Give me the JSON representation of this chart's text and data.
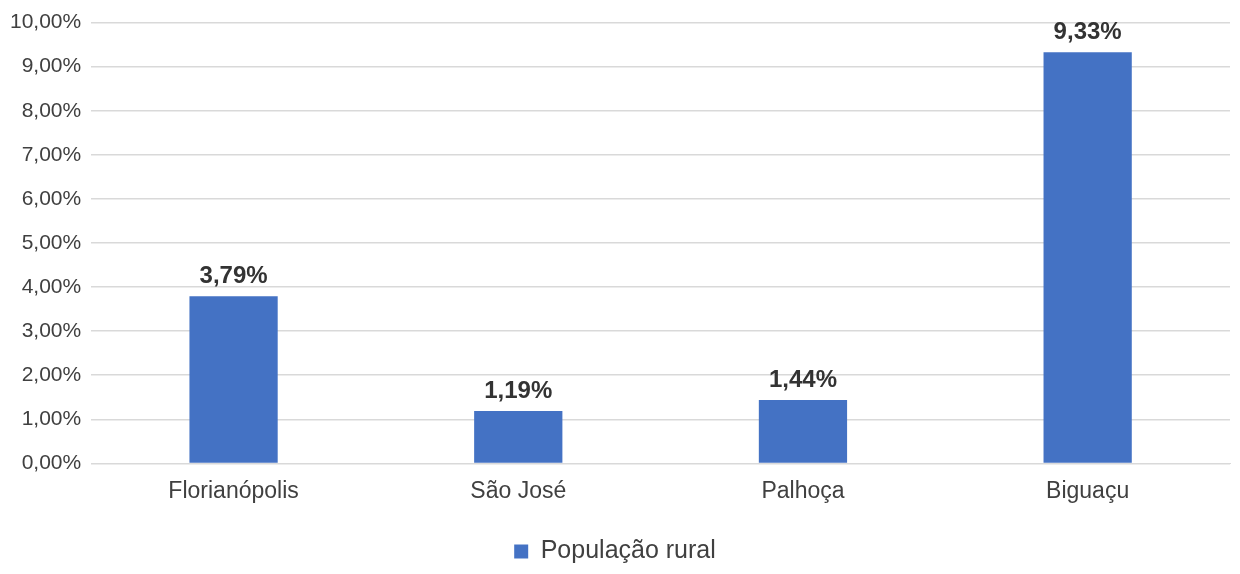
{
  "chart_data": {
    "type": "bar",
    "categories": [
      "Florianópolis",
      "São José",
      "Palhoça",
      "Biguaçu"
    ],
    "series": [
      {
        "name": "População rural",
        "color": "#4472c4",
        "values": [
          3.79,
          1.19,
          1.44,
          9.33
        ],
        "value_labels": [
          "3,79%",
          "1,19%",
          "1,44%",
          "9,33%"
        ]
      }
    ],
    "ylim": [
      0,
      10
    ],
    "yticks": [
      {
        "value": 0,
        "label": "0,00%"
      },
      {
        "value": 1,
        "label": "1,00%"
      },
      {
        "value": 2,
        "label": "2,00%"
      },
      {
        "value": 3,
        "label": "3,00%"
      },
      {
        "value": 4,
        "label": "4,00%"
      },
      {
        "value": 5,
        "label": "5,00%"
      },
      {
        "value": 6,
        "label": "6,00%"
      },
      {
        "value": 7,
        "label": "7,00%"
      },
      {
        "value": 8,
        "label": "8,00%"
      },
      {
        "value": 9,
        "label": "9,00%"
      },
      {
        "value": 10,
        "label": "10,00%"
      }
    ],
    "grid": "y",
    "legend": "bottom"
  }
}
